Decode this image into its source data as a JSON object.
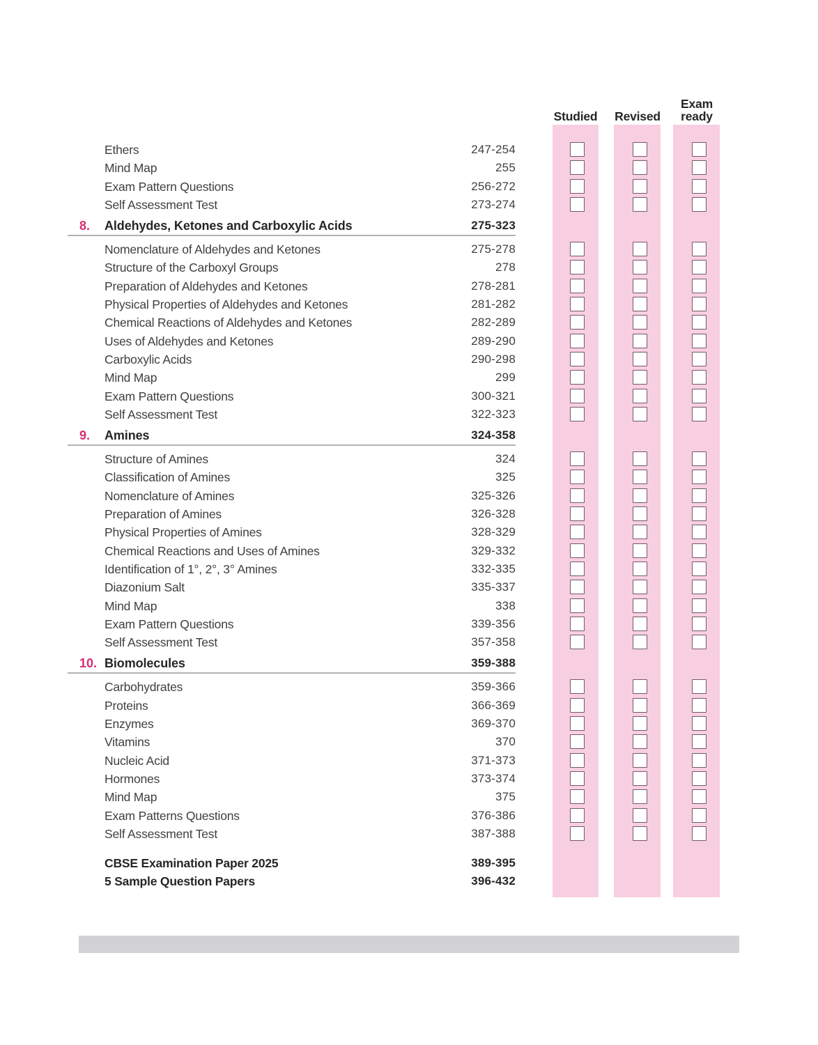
{
  "tracker": {
    "columns": [
      {
        "label": "Studied"
      },
      {
        "label": "Revised"
      },
      {
        "label": "Exam ready"
      }
    ],
    "checkbox_state": "unchecked"
  },
  "toc": {
    "groups": [
      {
        "type": "items",
        "rows": [
          {
            "label": "Ethers",
            "pages": "247-254"
          },
          {
            "label": "Mind Map",
            "pages": "255"
          },
          {
            "label": "Exam Pattern Questions",
            "pages": "256-272"
          },
          {
            "label": "Self Assessment Test",
            "pages": "273-274"
          }
        ]
      },
      {
        "type": "section",
        "number": "8.",
        "label": "Aldehydes, Ketones and Carboxylic Acids",
        "pages": "275-323"
      },
      {
        "type": "items",
        "rows": [
          {
            "label": "Nomenclature of Aldehydes and Ketones",
            "pages": "275-278"
          },
          {
            "label": "Structure of the Carboxyl Groups",
            "pages": "278"
          },
          {
            "label": "Preparation of Aldehydes and Ketones",
            "pages": "278-281"
          },
          {
            "label": "Physical Properties of Aldehydes and Ketones",
            "pages": "281-282"
          },
          {
            "label": "Chemical Reactions of Aldehydes and Ketones",
            "pages": "282-289"
          },
          {
            "label": "Uses of Aldehydes and Ketones",
            "pages": "289-290"
          },
          {
            "label": "Carboxylic Acids",
            "pages": "290-298"
          },
          {
            "label": "Mind Map",
            "pages": "299"
          },
          {
            "label": "Exam Pattern Questions",
            "pages": "300-321"
          },
          {
            "label": "Self Assessment Test",
            "pages": "322-323"
          }
        ]
      },
      {
        "type": "section",
        "number": "9.",
        "label": "Amines",
        "pages": "324-358"
      },
      {
        "type": "items",
        "rows": [
          {
            "label": "Structure of Amines",
            "pages": "324"
          },
          {
            "label": "Classification of Amines",
            "pages": "325"
          },
          {
            "label": "Nomenclature of Amines",
            "pages": "325-326"
          },
          {
            "label": "Preparation of Amines",
            "pages": "326-328"
          },
          {
            "label": "Physical Properties of Amines",
            "pages": "328-329"
          },
          {
            "label": "Chemical Reactions and Uses of Amines",
            "pages": "329-332"
          },
          {
            "label": "Identification of 1°, 2°, 3° Amines",
            "pages": "332-335"
          },
          {
            "label": "Diazonium Salt",
            "pages": "335-337"
          },
          {
            "label": "Mind Map",
            "pages": "338"
          },
          {
            "label": "Exam Pattern Questions",
            "pages": "339-356"
          },
          {
            "label": "Self Assessment Test",
            "pages": "357-358"
          }
        ]
      },
      {
        "type": "section",
        "number": "10.",
        "label": "Biomolecules",
        "pages": "359-388"
      },
      {
        "type": "items",
        "rows": [
          {
            "label": "Carbohydrates",
            "pages": "359-366"
          },
          {
            "label": "Proteins",
            "pages": "366-369"
          },
          {
            "label": "Enzymes",
            "pages": "369-370"
          },
          {
            "label": "Vitamins",
            "pages": "370"
          },
          {
            "label": "Nucleic Acid",
            "pages": "371-373"
          },
          {
            "label": "Hormones",
            "pages": "373-374"
          },
          {
            "label": "Mind Map",
            "pages": "375"
          },
          {
            "label": "Exam Patterns Questions",
            "pages": "376-386"
          },
          {
            "label": "Self Assessment Test",
            "pages": "387-388"
          }
        ]
      },
      {
        "type": "bold-items",
        "rows": [
          {
            "label": "CBSE Examination Paper 2025",
            "pages": "389-395"
          },
          {
            "label": "5 Sample Question Papers",
            "pages": "396-432"
          }
        ]
      }
    ]
  },
  "colors": {
    "column_pink": "#f8cfe1",
    "checkbox_border": "#715965",
    "section_number": "#d82e72",
    "body_text": "#3f3f3f",
    "heading_text": "#262626",
    "rule": "#b3b1b3",
    "footer_bar": "#d2d2d4"
  }
}
